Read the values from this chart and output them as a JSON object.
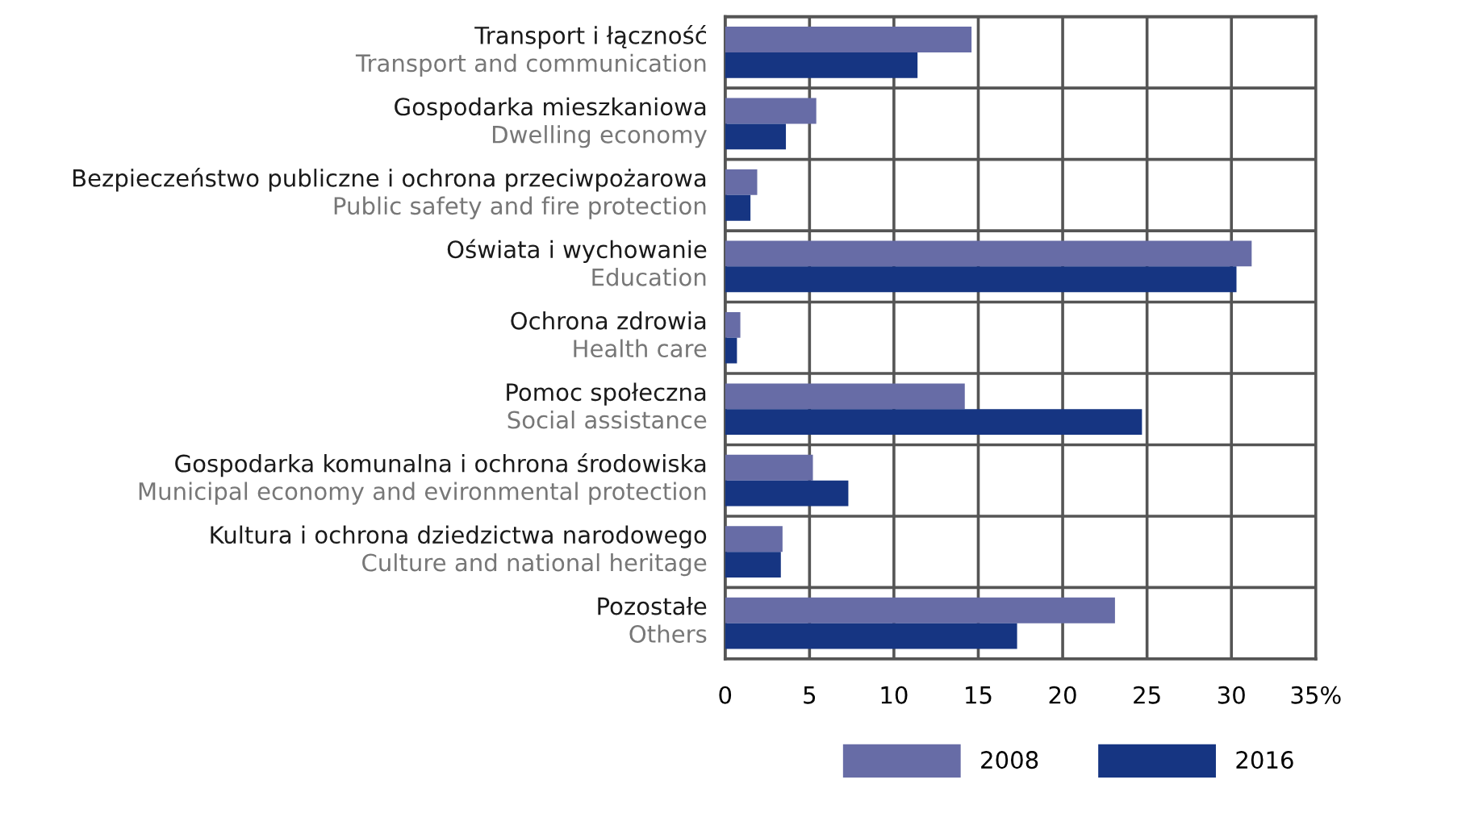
{
  "chart_data": {
    "type": "bar",
    "orientation": "horizontal",
    "categories": [
      "Transport i łączność\nTransport and communication",
      "Gospodarka mieszkaniowa\nDwelling economy",
      "Bezpieczeństwo publiczne i ochrona przeciwpożarowa\nPublic safety and fire protection",
      "Oświata i wychowanie\nEducation",
      "Ochrona zdrowia\nHealth care",
      "Pomoc społeczna\nSocial assistance",
      "Gospodarka komunalna i ochrona środowiska\nMunicipal economy and evironmental protection",
      "Kultura i ochrona dziedzictwa narodowego\nCulture and national heritage",
      "Pozostałe\nOthers"
    ],
    "series": [
      {
        "name": "2008",
        "color": "#676ca6",
        "values": [
          14.6,
          5.4,
          1.9,
          31.2,
          0.9,
          14.2,
          5.2,
          3.4,
          23.1
        ]
      },
      {
        "name": "2016",
        "color": "#163582",
        "values": [
          11.4,
          3.6,
          1.5,
          30.3,
          0.7,
          24.7,
          7.3,
          3.3,
          17.3
        ]
      }
    ],
    "xlim": [
      0,
      35
    ],
    "xticks": [
      0,
      5,
      10,
      15,
      20,
      25,
      30,
      {
        "value": 35,
        "label": "35%"
      }
    ],
    "grid": true,
    "legend": "bottom right"
  }
}
